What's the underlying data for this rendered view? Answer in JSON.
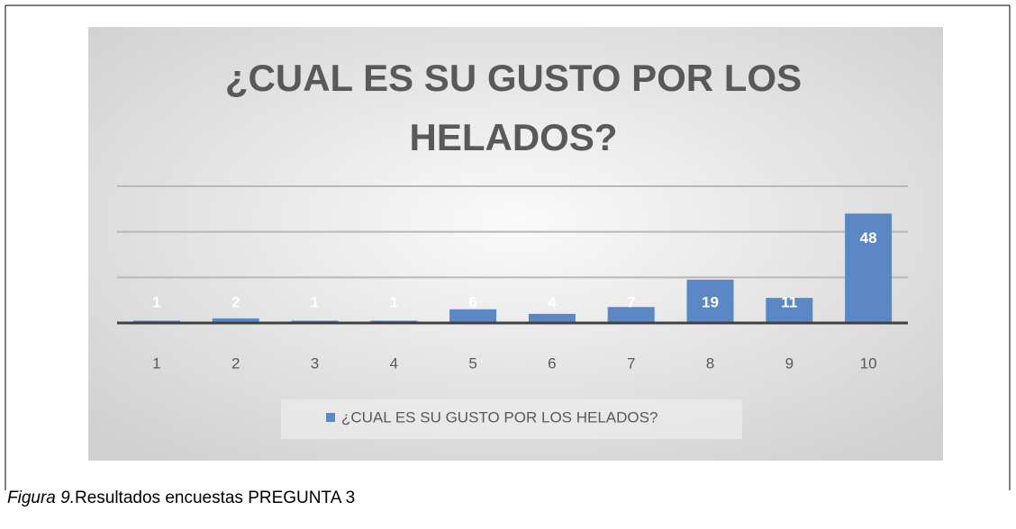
{
  "chart_data": {
    "type": "bar",
    "title": "¿CUAL ES SU GUSTO POR LOS HELADOS?",
    "categories": [
      "1",
      "2",
      "3",
      "4",
      "5",
      "6",
      "7",
      "8",
      "9",
      "10"
    ],
    "series": [
      {
        "name": "¿CUAL ES SU GUSTO POR LOS HELADOS?",
        "color": "#5b87c5",
        "values": [
          1,
          2,
          1,
          1,
          6,
          4,
          7,
          19,
          11,
          48
        ]
      }
    ],
    "ylim": [
      0,
      60
    ],
    "yticks": [
      0,
      20,
      40,
      60
    ],
    "grid": true,
    "legend": "bottom"
  },
  "caption": {
    "label": "Figura 9.",
    "text": "Resultados encuestas PREGUNTA 3"
  }
}
